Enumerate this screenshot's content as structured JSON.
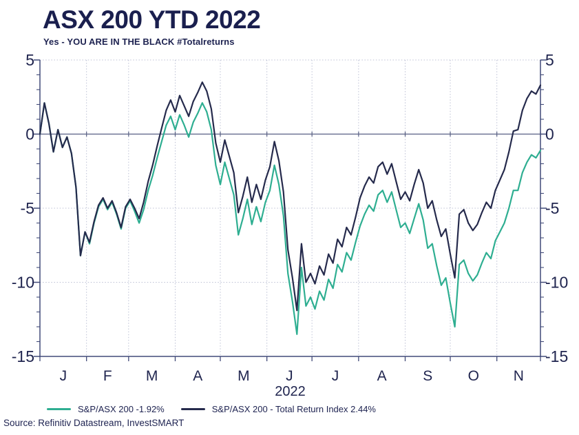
{
  "header": {
    "title": "ASX 200 YTD 2022",
    "subtitle": "Yes - YOU ARE IN THE BLACK #Totalreturns"
  },
  "footer": {
    "source": "Source: Refinitiv Datastream, InvestSMART"
  },
  "legend": {
    "items": [
      {
        "label": "S&P/ASX 200 -1.92%",
        "color": "#2eae91"
      },
      {
        "label": "S&P/ASX 200 - Total Return Index 2.44%",
        "color": "#252a4c"
      }
    ]
  },
  "colors": {
    "text": "#1d2250",
    "axis": "#414a78",
    "gridline": "#bcc0d4",
    "zero_line": "#565e82",
    "background": "#ffffff"
  },
  "chart_data": {
    "type": "line",
    "title": "ASX 200 YTD 2022",
    "subtitle": "Yes - YOU ARE IN THE BLACK #Totalreturns",
    "xlabel": "2022",
    "ylabel": "",
    "x_tick_labels": [
      "J",
      "F",
      "M",
      "A",
      "M",
      "J",
      "J",
      "A",
      "S",
      "O",
      "N"
    ],
    "month_boundaries_days": [
      0,
      31,
      59,
      90,
      120,
      151,
      181,
      212,
      243,
      273,
      304,
      333
    ],
    "sample_interval_days": 3,
    "x_unit": "days since 1 Jan 2022, one value every 3 days",
    "y_ticks": [
      5,
      0,
      -5,
      -10,
      -15
    ],
    "y_tick_labels": [
      "5",
      "0",
      "-5",
      "-10",
      "-15"
    ],
    "y_minor_tick_step": 1,
    "ylim": [
      -15,
      5
    ],
    "grid": true,
    "legend_position": "bottom",
    "series": [
      {
        "name": "S&P/ASX 200 -1.92%",
        "color": "#2eae91",
        "final_value_pct": -1.92,
        "values": [
          0.0,
          2.1,
          0.7,
          -1.2,
          0.3,
          -0.9,
          -0.2,
          -1.3,
          -3.6,
          -8.2,
          -6.6,
          -7.4,
          -6.0,
          -4.9,
          -4.4,
          -5.1,
          -4.6,
          -5.4,
          -6.4,
          -5.0,
          -4.5,
          -5.2,
          -6.0,
          -5.1,
          -3.8,
          -2.8,
          -1.6,
          -0.5,
          0.6,
          1.2,
          0.3,
          1.3,
          0.6,
          -0.2,
          0.8,
          1.4,
          2.1,
          1.5,
          0.3,
          -2.1,
          -3.4,
          -1.9,
          -3.0,
          -4.1,
          -6.8,
          -5.7,
          -4.4,
          -6.1,
          -4.9,
          -5.9,
          -4.6,
          -3.8,
          -2.1,
          -3.4,
          -5.5,
          -9.4,
          -11.3,
          -13.5,
          -9.0,
          -11.6,
          -11.0,
          -11.8,
          -10.6,
          -11.2,
          -9.8,
          -10.4,
          -8.8,
          -9.3,
          -8.0,
          -8.5,
          -7.3,
          -6.2,
          -5.4,
          -4.8,
          -5.2,
          -4.1,
          -3.8,
          -4.6,
          -3.9,
          -5.1,
          -6.3,
          -6.0,
          -6.7,
          -5.7,
          -4.7,
          -5.8,
          -7.7,
          -7.4,
          -8.9,
          -10.2,
          -9.7,
          -11.4,
          -13.0,
          -8.8,
          -8.5,
          -9.4,
          -9.9,
          -9.5,
          -8.7,
          -8.0,
          -8.4,
          -7.2,
          -6.6,
          -6.0,
          -5.0,
          -3.8,
          -3.8,
          -2.6,
          -1.9,
          -1.4,
          -1.6,
          -1.1
        ]
      },
      {
        "name": "S&P/ASX 200 - Total Return Index 2.44%",
        "color": "#252a4c",
        "final_value_pct": 2.44,
        "values": [
          0.0,
          2.1,
          0.7,
          -1.2,
          0.3,
          -0.9,
          -0.2,
          -1.3,
          -3.6,
          -8.2,
          -6.6,
          -7.3,
          -5.9,
          -4.8,
          -4.3,
          -5.0,
          -4.5,
          -5.3,
          -6.3,
          -4.9,
          -4.4,
          -5.0,
          -5.7,
          -4.6,
          -3.2,
          -2.1,
          -0.8,
          0.4,
          1.6,
          2.3,
          1.5,
          2.6,
          1.9,
          1.2,
          2.2,
          2.8,
          3.5,
          2.9,
          1.7,
          -0.6,
          -1.9,
          -0.4,
          -1.5,
          -2.6,
          -5.3,
          -4.2,
          -2.9,
          -4.6,
          -3.4,
          -4.4,
          -3.1,
          -2.2,
          -0.5,
          -1.8,
          -3.9,
          -7.8,
          -9.7,
          -11.9,
          -7.4,
          -10.0,
          -9.4,
          -10.1,
          -8.9,
          -9.5,
          -8.1,
          -8.7,
          -7.1,
          -7.6,
          -6.3,
          -6.8,
          -5.6,
          -4.3,
          -3.5,
          -2.9,
          -3.3,
          -2.2,
          -1.9,
          -2.7,
          -2.0,
          -3.2,
          -4.4,
          -3.9,
          -4.5,
          -3.4,
          -2.4,
          -3.3,
          -5.0,
          -4.5,
          -5.8,
          -6.9,
          -6.4,
          -8.1,
          -9.7,
          -5.4,
          -5.1,
          -6.0,
          -6.5,
          -6.1,
          -5.3,
          -4.6,
          -5.0,
          -3.8,
          -3.1,
          -2.4,
          -1.2,
          0.2,
          0.3,
          1.6,
          2.4,
          2.9,
          2.7,
          3.3
        ]
      }
    ]
  }
}
